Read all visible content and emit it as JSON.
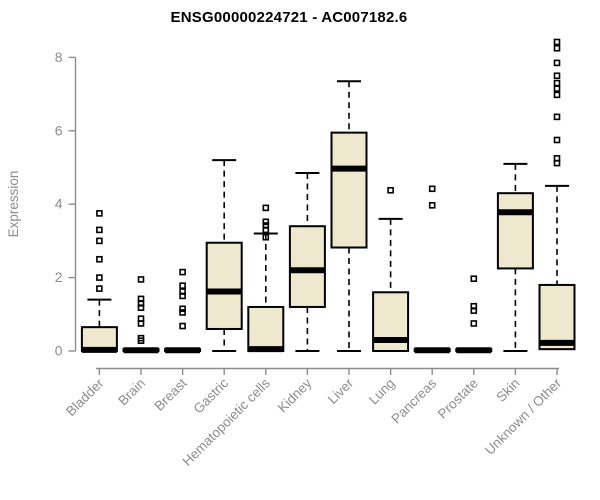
{
  "colors": {
    "background": "#ffffff",
    "box_fill": "#ede8ce",
    "box_stroke": "#000000",
    "median": "#000000",
    "outlier_stroke": "#000000",
    "axis": "#8c8c8c",
    "tick_text": "#8c8c8c",
    "title_text": "#000000"
  },
  "chart_data": {
    "type": "boxplot",
    "title": "ENSG00000224721 - AC007182.6",
    "xlabel": "",
    "ylabel": "Expression",
    "ylim": [
      0,
      8.5
    ],
    "yticks": [
      0,
      2,
      4,
      6,
      8
    ],
    "grid": false,
    "legend": "none",
    "whisker_style": "dashed",
    "categories": [
      "Bladder",
      "Brain",
      "Breast",
      "Gastric",
      "Hematopoietic cells",
      "Kidney",
      "Liver",
      "Lung",
      "Pancreas",
      "Prostate",
      "Skin",
      "Unknown / Other"
    ],
    "series": [
      {
        "name": "Bladder",
        "low": 0,
        "q1": 0,
        "median": 0.03,
        "q3": 0.65,
        "high": 1.4,
        "outliers": [
          1.7,
          2.0,
          2.5,
          3.0,
          3.3,
          3.75
        ]
      },
      {
        "name": "Brain",
        "low": 0,
        "q1": 0,
        "median": 0.02,
        "q3": 0.05,
        "high": 0.05,
        "outliers": [
          0.28,
          0.35,
          0.75,
          0.88,
          1.18,
          1.3,
          1.42,
          1.95
        ]
      },
      {
        "name": "Breast",
        "low": 0,
        "q1": 0,
        "median": 0.02,
        "q3": 0.05,
        "high": 0.05,
        "outliers": [
          0.68,
          1.05,
          1.15,
          1.5,
          1.62,
          1.78,
          2.15
        ]
      },
      {
        "name": "Gastric",
        "low": 0,
        "q1": 0.6,
        "median": 1.62,
        "q3": 2.95,
        "high": 5.2,
        "outliers": []
      },
      {
        "name": "Hematopoietic cells",
        "low": 0,
        "q1": 0,
        "median": 0.05,
        "q3": 1.2,
        "high": 3.2,
        "outliers": [
          3.1,
          3.3,
          3.42,
          3.52,
          3.9
        ]
      },
      {
        "name": "Kidney",
        "low": 0,
        "q1": 1.2,
        "median": 2.2,
        "q3": 3.4,
        "high": 4.85,
        "outliers": []
      },
      {
        "name": "Liver",
        "low": 0,
        "q1": 2.82,
        "median": 4.97,
        "q3": 5.95,
        "high": 7.35,
        "outliers": []
      },
      {
        "name": "Lung",
        "low": 0,
        "q1": 0,
        "median": 0.3,
        "q3": 1.6,
        "high": 3.6,
        "outliers": [
          4.38
        ]
      },
      {
        "name": "Pancreas",
        "low": 0,
        "q1": 0,
        "median": 0.02,
        "q3": 0.05,
        "high": 0.05,
        "outliers": [
          3.97,
          4.42
        ]
      },
      {
        "name": "Prostate",
        "low": 0,
        "q1": 0,
        "median": 0.02,
        "q3": 0.05,
        "high": 0.05,
        "outliers": [
          0.75,
          1.1,
          1.22,
          1.97
        ]
      },
      {
        "name": "Skin",
        "low": 0,
        "q1": 2.25,
        "median": 3.78,
        "q3": 4.3,
        "high": 5.1,
        "outliers": []
      },
      {
        "name": "Unknown / Other",
        "low": 0,
        "q1": 0.05,
        "median": 0.22,
        "q3": 1.8,
        "high": 4.5,
        "outliers": [
          5.12,
          5.25,
          5.75,
          6.38,
          6.98,
          7.15,
          7.3,
          7.5,
          7.85,
          8.25,
          8.42
        ]
      }
    ]
  }
}
